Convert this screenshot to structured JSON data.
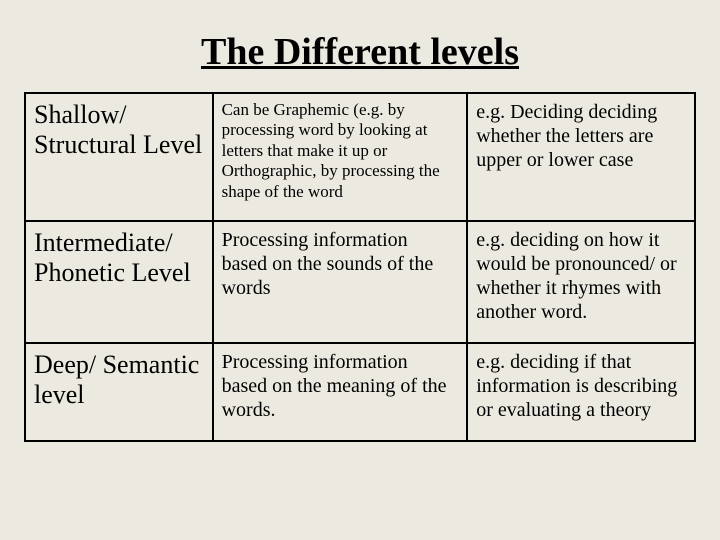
{
  "title": "The Different levels",
  "table": {
    "columns": [
      {
        "width_pct": 28
      },
      {
        "width_pct": 38
      },
      {
        "width_pct": 34
      }
    ],
    "rows": [
      {
        "level": "Shallow/ Structural Level",
        "description": "Can be Graphemic (e.g. by processing word by looking at letters that make it up or Orthographic, by processing the shape of the word",
        "description_fontsize": 17,
        "example": "e.g. Deciding deciding whether the letters are upper or lower case"
      },
      {
        "level": "Intermediate/ Phonetic Level",
        "description": "Processing information based on the sounds of the words",
        "description_fontsize": 20,
        "example": "e.g. deciding on how it would be pronounced/ or whether it rhymes with another word."
      },
      {
        "level": "Deep/ Semantic level",
        "description": "Processing information based on the meaning of the words.",
        "description_fontsize": 20,
        "example": "e.g. deciding if that information is describing or evaluating a theory"
      }
    ]
  },
  "colors": {
    "background": "#ece9e0",
    "text": "#000000",
    "border": "#000000"
  },
  "typography": {
    "title_fontsize": 38,
    "level_fontsize": 26,
    "example_fontsize": 20,
    "font_family": "Times New Roman"
  }
}
